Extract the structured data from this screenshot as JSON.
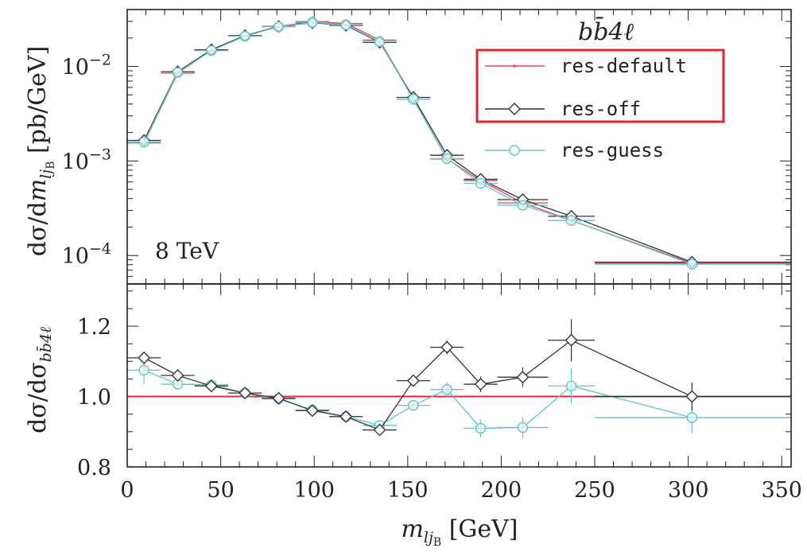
{
  "chart_data": [
    {
      "type": "line",
      "panel": "main",
      "ylabel": "dσ/dm_{l j_B} [pb/GeV]",
      "yscale": "log",
      "ylim": [
        5e-05,
        0.04
      ],
      "xlim": [
        0,
        355
      ],
      "yticks": [
        {
          "value": 0.01,
          "mantissa": "10",
          "exponent": "−2"
        },
        {
          "value": 0.001,
          "mantissa": "10",
          "exponent": "−3"
        },
        {
          "value": 0.0001,
          "mantissa": "10",
          "exponent": "−4"
        }
      ],
      "annotations": {
        "energy": "8 TeV",
        "process": "bb̄4ℓ"
      },
      "legend_position": "top-right",
      "bins": [
        [
          0,
          18
        ],
        [
          18,
          36
        ],
        [
          36,
          54
        ],
        [
          54,
          72
        ],
        [
          72,
          90
        ],
        [
          90,
          108
        ],
        [
          108,
          126
        ],
        [
          126,
          144
        ],
        [
          144,
          162
        ],
        [
          162,
          180
        ],
        [
          180,
          198
        ],
        [
          198,
          225
        ],
        [
          225,
          250
        ],
        [
          250,
          355
        ]
      ],
      "x": [
        9,
        27,
        45,
        63,
        81,
        99,
        117,
        135,
        153,
        171,
        189,
        211.5,
        237.5,
        302
      ],
      "series": [
        {
          "name": "res-default",
          "color": "#e8464e",
          "marker": "dot",
          "values": [
            0.00155,
            0.0085,
            0.0148,
            0.021,
            0.0265,
            0.0298,
            0.0285,
            0.019,
            0.0045,
            0.00105,
            0.00062,
            0.00036,
            0.000235,
            8.3e-05
          ]
        },
        {
          "name": "res-off",
          "color": "#333333",
          "marker": "diamond",
          "values": [
            0.00165,
            0.0088,
            0.015,
            0.0212,
            0.0265,
            0.029,
            0.0272,
            0.018,
            0.0047,
            0.00115,
            0.00064,
            0.00039,
            0.00026,
            8.5e-05
          ]
        },
        {
          "name": "res-guess",
          "color": "#5cc6c9",
          "marker": "circle",
          "values": [
            0.00158,
            0.0086,
            0.0147,
            0.0209,
            0.0263,
            0.0292,
            0.0276,
            0.0183,
            0.0045,
            0.00106,
            0.00058,
            0.00034,
            0.000235,
            8.1e-05
          ]
        }
      ]
    },
    {
      "type": "line",
      "panel": "ratio",
      "ylabel": "dσ/dσ_{b b̄ 4ℓ}",
      "xlabel": "m_{l j_B} [GeV]",
      "ylim": [
        0.8,
        1.32
      ],
      "xlim": [
        0,
        355
      ],
      "yticks": [
        "0.8",
        "1.0",
        "1.2"
      ],
      "xticks": [
        "0",
        "50",
        "100",
        "150",
        "200",
        "250",
        "300",
        "350"
      ],
      "reference_line": {
        "value": 1.0,
        "color": "#e8272f"
      },
      "series": [
        {
          "name": "res-off",
          "color": "#333333",
          "marker": "diamond",
          "x": [
            9,
            27,
            45,
            63,
            81,
            99,
            117,
            135,
            153,
            171,
            189,
            211.5,
            237.5,
            302
          ],
          "values": [
            1.11,
            1.06,
            1.03,
            1.01,
            0.995,
            0.96,
            0.943,
            0.905,
            1.045,
            1.14,
            1.035,
            1.055,
            1.16,
            1.0
          ],
          "errors": [
            0.015,
            0.01,
            0.007,
            0.006,
            0.006,
            0.007,
            0.008,
            0.01,
            0.015,
            0.02,
            0.022,
            0.028,
            0.06,
            0.04
          ]
        },
        {
          "name": "res-guess",
          "color": "#5cc6c9",
          "marker": "circle",
          "x": [
            9,
            27,
            45,
            63,
            81,
            99,
            117,
            135,
            153,
            171,
            189,
            211.5,
            237.5,
            302
          ],
          "values": [
            1.075,
            1.035,
            1.033,
            1.01,
            0.993,
            0.962,
            0.943,
            0.918,
            0.975,
            1.02,
            0.91,
            0.912,
            1.03,
            0.94
          ],
          "errors": [
            0.04,
            0.01,
            0.007,
            0.006,
            0.006,
            0.007,
            0.008,
            0.01,
            0.015,
            0.02,
            0.025,
            0.03,
            0.05,
            0.045
          ]
        }
      ]
    }
  ]
}
